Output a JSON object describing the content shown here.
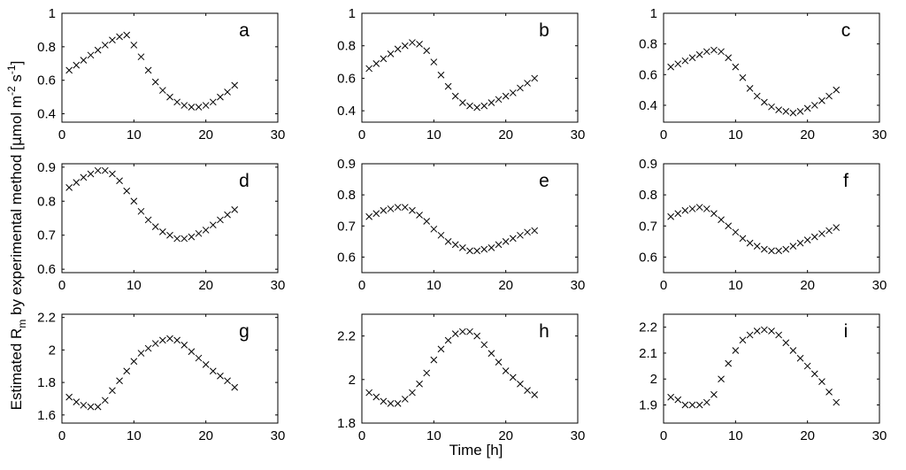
{
  "figure": {
    "xlabel": "Time [h]",
    "ylabel_parts": {
      "pre": "Estimated R",
      "sub": "m",
      "mid": " by experimental method [",
      "mu": "μ",
      "unit_a": "mol m",
      "sup1": "-2",
      "unit_b": " s",
      "sup2": "-1",
      "close": "]"
    }
  },
  "chart_data": [
    {
      "type": "scatter",
      "panel": "a",
      "label": "a",
      "xlim": [
        0,
        30
      ],
      "ylim": [
        0.35,
        1
      ],
      "xticks": [
        0,
        10,
        20,
        30
      ],
      "yticks": [
        0.4,
        0.6,
        0.8,
        1
      ],
      "ytick_labels": [
        "0.4",
        "0.6",
        "0.8",
        "1"
      ],
      "x": [
        1,
        2,
        3,
        4,
        5,
        6,
        7,
        8,
        9,
        10,
        11,
        12,
        13,
        14,
        15,
        16,
        17,
        18,
        19,
        20,
        21,
        22,
        23,
        24
      ],
      "y": [
        0.66,
        0.69,
        0.72,
        0.75,
        0.78,
        0.81,
        0.84,
        0.86,
        0.87,
        0.81,
        0.74,
        0.66,
        0.59,
        0.54,
        0.5,
        0.47,
        0.45,
        0.44,
        0.44,
        0.45,
        0.47,
        0.5,
        0.53,
        0.57
      ]
    },
    {
      "type": "scatter",
      "panel": "b",
      "label": "b",
      "xlim": [
        0,
        30
      ],
      "ylim": [
        0.33,
        1
      ],
      "xticks": [
        0,
        10,
        20,
        30
      ],
      "yticks": [
        0.4,
        0.6,
        0.8,
        1
      ],
      "ytick_labels": [
        "0.4",
        "0.6",
        "0.8",
        "1"
      ],
      "x": [
        1,
        2,
        3,
        4,
        5,
        6,
        7,
        8,
        9,
        10,
        11,
        12,
        13,
        14,
        15,
        16,
        17,
        18,
        19,
        20,
        21,
        22,
        23,
        24
      ],
      "y": [
        0.66,
        0.69,
        0.72,
        0.75,
        0.78,
        0.8,
        0.82,
        0.81,
        0.77,
        0.7,
        0.62,
        0.55,
        0.49,
        0.45,
        0.43,
        0.42,
        0.43,
        0.45,
        0.47,
        0.49,
        0.51,
        0.54,
        0.57,
        0.6
      ]
    },
    {
      "type": "scatter",
      "panel": "c",
      "label": "c",
      "xlim": [
        0,
        30
      ],
      "ylim": [
        0.29,
        1
      ],
      "xticks": [
        0,
        10,
        20,
        30
      ],
      "yticks": [
        0.4,
        0.6,
        0.8,
        1
      ],
      "ytick_labels": [
        "0.4",
        "0.6",
        "0.8",
        "1"
      ],
      "x": [
        1,
        2,
        3,
        4,
        5,
        6,
        7,
        8,
        9,
        10,
        11,
        12,
        13,
        14,
        15,
        16,
        17,
        18,
        19,
        20,
        21,
        22,
        23,
        24
      ],
      "y": [
        0.65,
        0.67,
        0.69,
        0.71,
        0.73,
        0.75,
        0.76,
        0.75,
        0.71,
        0.65,
        0.58,
        0.51,
        0.46,
        0.42,
        0.39,
        0.37,
        0.36,
        0.35,
        0.36,
        0.38,
        0.4,
        0.43,
        0.46,
        0.5
      ]
    },
    {
      "type": "scatter",
      "panel": "d",
      "label": "d",
      "xlim": [
        0,
        30
      ],
      "ylim": [
        0.59,
        0.91
      ],
      "xticks": [
        0,
        10,
        20,
        30
      ],
      "yticks": [
        0.6,
        0.7,
        0.8,
        0.9
      ],
      "ytick_labels": [
        "0.6",
        "0.7",
        "0.8",
        "0.9"
      ],
      "x": [
        1,
        2,
        3,
        4,
        5,
        6,
        7,
        8,
        9,
        10,
        11,
        12,
        13,
        14,
        15,
        16,
        17,
        18,
        19,
        20,
        21,
        22,
        23,
        24
      ],
      "y": [
        0.84,
        0.855,
        0.87,
        0.88,
        0.89,
        0.89,
        0.88,
        0.86,
        0.83,
        0.8,
        0.77,
        0.745,
        0.725,
        0.71,
        0.7,
        0.69,
        0.69,
        0.695,
        0.705,
        0.715,
        0.73,
        0.745,
        0.76,
        0.775
      ]
    },
    {
      "type": "scatter",
      "panel": "e",
      "label": "e",
      "xlim": [
        0,
        30
      ],
      "ylim": [
        0.55,
        0.9
      ],
      "xticks": [
        0,
        10,
        20,
        30
      ],
      "yticks": [
        0.6,
        0.7,
        0.8,
        0.9
      ],
      "ytick_labels": [
        "0.6",
        "0.7",
        "0.8",
        "0.9"
      ],
      "x": [
        1,
        2,
        3,
        4,
        5,
        6,
        7,
        8,
        9,
        10,
        11,
        12,
        13,
        14,
        15,
        16,
        17,
        18,
        19,
        20,
        21,
        22,
        23,
        24
      ],
      "y": [
        0.73,
        0.74,
        0.75,
        0.755,
        0.76,
        0.76,
        0.75,
        0.735,
        0.715,
        0.69,
        0.67,
        0.65,
        0.64,
        0.63,
        0.62,
        0.62,
        0.625,
        0.63,
        0.64,
        0.65,
        0.66,
        0.67,
        0.68,
        0.685
      ]
    },
    {
      "type": "scatter",
      "panel": "f",
      "label": "f",
      "xlim": [
        0,
        30
      ],
      "ylim": [
        0.55,
        0.9
      ],
      "xticks": [
        0,
        10,
        20,
        30
      ],
      "yticks": [
        0.6,
        0.7,
        0.8,
        0.9
      ],
      "ytick_labels": [
        "0.6",
        "0.7",
        "0.8",
        "0.9"
      ],
      "x": [
        1,
        2,
        3,
        4,
        5,
        6,
        7,
        8,
        9,
        10,
        11,
        12,
        13,
        14,
        15,
        16,
        17,
        18,
        19,
        20,
        21,
        22,
        23,
        24
      ],
      "y": [
        0.73,
        0.74,
        0.75,
        0.755,
        0.76,
        0.755,
        0.74,
        0.72,
        0.7,
        0.68,
        0.66,
        0.645,
        0.635,
        0.625,
        0.62,
        0.62,
        0.625,
        0.635,
        0.645,
        0.655,
        0.665,
        0.675,
        0.685,
        0.695
      ]
    },
    {
      "type": "scatter",
      "panel": "g",
      "label": "g",
      "xlim": [
        0,
        30
      ],
      "ylim": [
        1.55,
        2.22
      ],
      "xticks": [
        0,
        10,
        20,
        30
      ],
      "yticks": [
        1.6,
        1.8,
        2,
        2.2
      ],
      "ytick_labels": [
        "1.6",
        "1.8",
        "2",
        "2.2"
      ],
      "x": [
        1,
        2,
        3,
        4,
        5,
        6,
        7,
        8,
        9,
        10,
        11,
        12,
        13,
        14,
        15,
        16,
        17,
        18,
        19,
        20,
        21,
        22,
        23,
        24
      ],
      "y": [
        1.71,
        1.68,
        1.66,
        1.65,
        1.65,
        1.69,
        1.75,
        1.81,
        1.87,
        1.93,
        1.98,
        2.01,
        2.04,
        2.06,
        2.07,
        2.06,
        2.03,
        1.99,
        1.95,
        1.91,
        1.87,
        1.84,
        1.81,
        1.77
      ]
    },
    {
      "type": "scatter",
      "panel": "h",
      "label": "h",
      "xlim": [
        0,
        30
      ],
      "ylim": [
        1.8,
        2.3
      ],
      "xticks": [
        0,
        10,
        20,
        30
      ],
      "yticks": [
        1.8,
        2,
        2.2
      ],
      "ytick_labels": [
        "1.8",
        "2",
        "2.2"
      ],
      "x": [
        1,
        2,
        3,
        4,
        5,
        6,
        7,
        8,
        9,
        10,
        11,
        12,
        13,
        14,
        15,
        16,
        17,
        18,
        19,
        20,
        21,
        22,
        23,
        24
      ],
      "y": [
        1.94,
        1.92,
        1.9,
        1.89,
        1.89,
        1.91,
        1.94,
        1.98,
        2.03,
        2.09,
        2.14,
        2.18,
        2.21,
        2.22,
        2.22,
        2.2,
        2.16,
        2.12,
        2.08,
        2.04,
        2.01,
        1.98,
        1.95,
        1.93
      ]
    },
    {
      "type": "scatter",
      "panel": "i",
      "label": "i",
      "xlim": [
        0,
        30
      ],
      "ylim": [
        1.83,
        2.25
      ],
      "xticks": [
        0,
        10,
        20,
        30
      ],
      "yticks": [
        1.9,
        2,
        2.1,
        2.2
      ],
      "ytick_labels": [
        "1.9",
        "2",
        "2.1",
        "2.2"
      ],
      "x": [
        1,
        2,
        3,
        4,
        5,
        6,
        7,
        8,
        9,
        10,
        11,
        12,
        13,
        14,
        15,
        16,
        17,
        18,
        19,
        20,
        21,
        22,
        23,
        24
      ],
      "y": [
        1.93,
        1.92,
        1.9,
        1.9,
        1.9,
        1.91,
        1.94,
        2.0,
        2.06,
        2.11,
        2.15,
        2.17,
        2.185,
        2.19,
        2.185,
        2.17,
        2.14,
        2.11,
        2.08,
        2.05,
        2.02,
        1.99,
        1.95,
        1.91
      ]
    }
  ]
}
